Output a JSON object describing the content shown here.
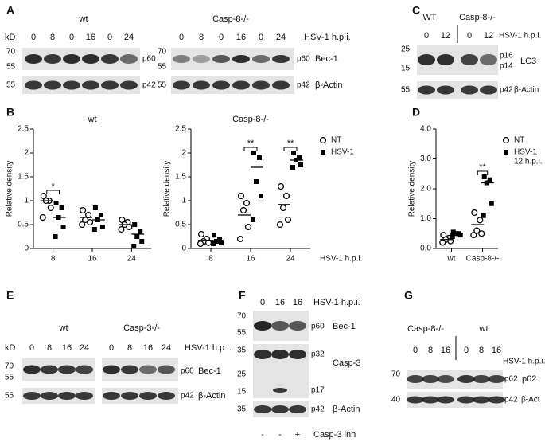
{
  "panels": {
    "A": {
      "label": "A",
      "kd": "kD",
      "time_label": "HSV-1 h.p.i.",
      "groups": [
        {
          "name": "wt",
          "lanes": [
            0,
            8,
            0,
            16,
            0,
            24
          ],
          "markers": [
            70,
            55,
            55
          ],
          "bands": [
            "p60",
            "p42"
          ]
        },
        {
          "name": "Casp-8-/-",
          "lanes": [
            0,
            8,
            0,
            16,
            0,
            24
          ],
          "markers": [
            70,
            55,
            55
          ],
          "bands": [
            "p60",
            "p42"
          ]
        }
      ],
      "proteins": [
        "Bec-1",
        "β-Actin"
      ]
    },
    "B": {
      "label": "B"
    },
    "C": {
      "label": "C",
      "groups": [
        {
          "name": "WT",
          "lanes": [
            0,
            12
          ]
        },
        {
          "name": "Casp-8-/-",
          "lanes": [
            0,
            12
          ]
        }
      ],
      "time_label": "HSV-1 h.p.i.",
      "markers": [
        25,
        15,
        55
      ],
      "bands": [
        "p16",
        "p14",
        "p42"
      ],
      "proteins": [
        "LC3",
        "β-Actin"
      ]
    },
    "D": {
      "label": "D"
    },
    "E": {
      "label": "E",
      "kd": "kD",
      "groups": [
        {
          "name": "wt",
          "lanes": [
            0,
            8,
            16,
            24
          ]
        },
        {
          "name": "Casp-3-/-",
          "lanes": [
            0,
            8,
            16,
            24
          ]
        }
      ],
      "time_label": "HSV-1 h.p.i.",
      "markers": [
        70,
        55,
        55
      ],
      "bands": [
        "p60",
        "p42"
      ],
      "proteins": [
        "Bec-1",
        "β-Actin"
      ]
    },
    "F": {
      "label": "F",
      "lanes": [
        0,
        16,
        16
      ],
      "time_label": "HSV-1 h.p.i.",
      "markers": [
        70,
        55,
        35,
        25,
        15,
        35
      ],
      "bands": [
        "p60",
        "p32",
        "p17",
        "p42"
      ],
      "proteins": [
        "Bec-1",
        "Casp-3",
        "β-Actin"
      ],
      "inhibitor": [
        "-",
        "-",
        "+"
      ],
      "inhibitor_label": "Casp-3 inh"
    },
    "G": {
      "label": "G",
      "groups": [
        {
          "name": "Casp-8-/-",
          "lanes": [
            0,
            8,
            16
          ]
        },
        {
          "name": "wt",
          "lanes": [
            0,
            8,
            16
          ]
        }
      ],
      "time_label": "HSV-1 h.p.i.",
      "markers": [
        70,
        40
      ],
      "bands": [
        "p62",
        "p42"
      ],
      "proteins": [
        "p62",
        "β-Act"
      ]
    }
  },
  "chart_data": [
    {
      "type": "scatter",
      "title": "wt",
      "y_label": "Relative density",
      "categories": [
        8,
        16,
        24
      ],
      "ylim": [
        0,
        2.5
      ],
      "yticks": [
        0,
        0.5,
        1,
        1.5,
        2,
        2.5
      ],
      "series": [
        {
          "name": "NT",
          "marker": "open-circle",
          "color": "#000000",
          "values": [
            [
              1.1,
              1.0,
              1.0,
              0.85,
              0.65
            ],
            [
              0.8,
              0.7,
              0.6,
              0.55,
              0.5
            ],
            [
              0.6,
              0.55,
              0.5,
              0.45,
              0.4
            ]
          ],
          "means": [
            1.0,
            0.65,
            0.5
          ]
        },
        {
          "name": "HSV-1",
          "marker": "filled-square",
          "color": "#000000",
          "values": [
            [
              0.95,
              0.85,
              0.65,
              0.45,
              0.25
            ],
            [
              0.85,
              0.7,
              0.6,
              0.45,
              0.4
            ],
            [
              0.5,
              0.35,
              0.25,
              0.15,
              0.05
            ]
          ],
          "means": [
            0.65,
            0.6,
            0.3
          ]
        }
      ],
      "annotations": [
        {
          "text": "*",
          "category": 0
        }
      ]
    },
    {
      "type": "scatter",
      "title": "Casp-8-/-",
      "y_label": "Relative density",
      "x_label": "HSV-1 h.p.i.",
      "categories": [
        8,
        16,
        24
      ],
      "ylim": [
        0,
        2.5
      ],
      "yticks": [
        0,
        0.5,
        1,
        1.5,
        2,
        2.5
      ],
      "legend": "right",
      "series": [
        {
          "name": "NT",
          "marker": "open-circle",
          "color": "#000000",
          "values": [
            [
              0.3,
              0.2,
              0.15,
              0.12,
              0.1
            ],
            [
              1.1,
              0.95,
              0.8,
              0.45,
              0.2
            ],
            [
              1.3,
              1.1,
              0.85,
              0.6,
              0.5
            ]
          ],
          "means": [
            0.17,
            0.7,
            0.92
          ]
        },
        {
          "name": "HSV-1",
          "marker": "filled-square",
          "color": "#000000",
          "values": [
            [
              0.28,
              0.2,
              0.15,
              0.12,
              0.1
            ],
            [
              2.0,
              1.9,
              1.4,
              1.1,
              0.6
            ],
            [
              2.0,
              1.9,
              1.85,
              1.75,
              1.7
            ]
          ],
          "means": [
            0.17,
            1.7,
            1.85
          ]
        }
      ],
      "annotations": [
        {
          "text": "**",
          "category": 1
        },
        {
          "text": "**",
          "category": 2
        }
      ]
    },
    {
      "type": "scatter",
      "y_label": "Relative density",
      "categories": [
        "wt",
        "Casp-8-/-"
      ],
      "ylim": [
        0,
        4
      ],
      "yticks": [
        {
          "value": 0,
          "label": "0.0"
        },
        {
          "value": 1,
          "label": "1.0"
        },
        {
          "value": 2,
          "label": "2.0"
        },
        {
          "value": 3,
          "label": "3.0"
        },
        {
          "value": 4,
          "label": "4.0"
        }
      ],
      "legend": "right",
      "series": [
        {
          "name": "NT",
          "marker": "open-circle",
          "color": "#000000",
          "values": [
            [
              0.45,
              0.35,
              0.3,
              0.25,
              0.2
            ],
            [
              1.2,
              0.95,
              0.6,
              0.5,
              0.45
            ]
          ],
          "means": [
            0.3,
            0.8
          ]
        },
        {
          "name": "HSV-1",
          "legend_note": "12 h.p.i.",
          "marker": "filled-square",
          "color": "#000000",
          "values": [
            [
              0.55,
              0.5,
              0.5,
              0.45,
              0.4
            ],
            [
              2.4,
              2.3,
              2.2,
              1.5,
              1.1
            ]
          ],
          "means": [
            0.5,
            2.2
          ]
        }
      ],
      "annotations": [
        {
          "text": "**",
          "category": 1
        }
      ]
    }
  ]
}
